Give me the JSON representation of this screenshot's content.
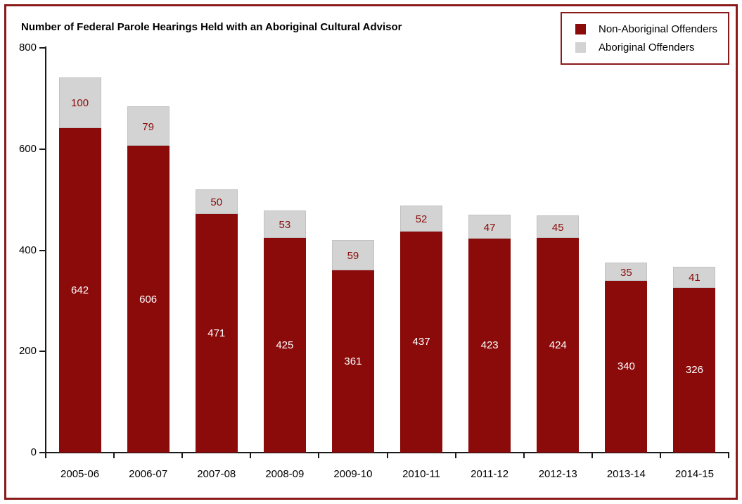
{
  "frame": {
    "border_color": "#8B1A1A",
    "background": "#FFFFFF"
  },
  "chart_data": {
    "type": "bar",
    "stacked": true,
    "title": "Number of Federal Parole Hearings Held with an Aboriginal Cultural Advisor",
    "categories": [
      "2005-06",
      "2006-07",
      "2007-08",
      "2008-09",
      "2009-10",
      "2010-11",
      "2011-12",
      "2012-13",
      "2013-14",
      "2014-15"
    ],
    "series": [
      {
        "name": "Aboriginal Offenders",
        "color": "#8B0B0B",
        "label_color": "#FFFFFF",
        "values": [
          642,
          606,
          471,
          425,
          361,
          437,
          423,
          424,
          340,
          326
        ]
      },
      {
        "name": "Non-Aboriginal Offenders",
        "color": "#D3D3D3",
        "label_color": "#8B0B0B",
        "values": [
          100,
          79,
          50,
          53,
          59,
          52,
          47,
          45,
          35,
          41
        ]
      }
    ],
    "xlabel": "",
    "ylabel": "",
    "ylim": [
      0,
      800
    ],
    "y_ticks": [
      0,
      200,
      400,
      600,
      800
    ],
    "grid": false,
    "legend_position": "top-right",
    "legend": {
      "items": [
        {
          "label": "Non-Aboriginal Offenders",
          "color": "#D3D3D3"
        },
        {
          "label": "Aboriginal Offenders",
          "color": "#8B0B0B"
        }
      ]
    },
    "axis_color": "#1A1A1A"
  }
}
